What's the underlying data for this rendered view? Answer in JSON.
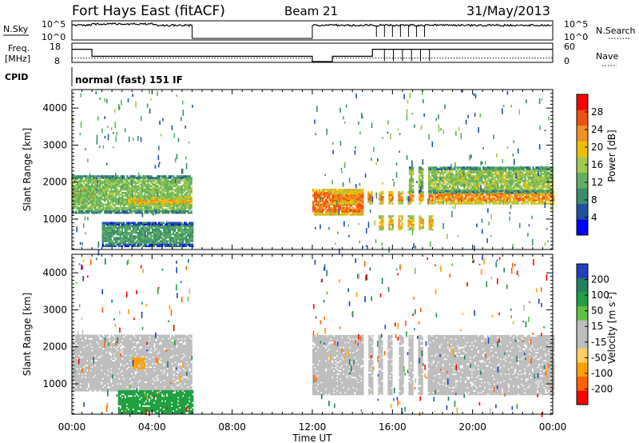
{
  "header": {
    "station": "Fort Hays East (fitACF)",
    "beam": "Beam 21",
    "date": "31/May/2013"
  },
  "nsky_panel": {
    "left_label": "N.Sky",
    "left_ticks": [
      "10^5",
      "10^0"
    ],
    "right_ticks": [
      "10^5",
      "10^0"
    ],
    "right_label": "N.Search"
  },
  "freq_panel": {
    "left_label_1": "Freq.",
    "left_label_2": "[MHz]",
    "left_ticks": [
      "18",
      "8"
    ],
    "right_ticks": [
      "60",
      "0"
    ],
    "right_label": "Nave"
  },
  "cpid_panel": {
    "label": "CPID",
    "mode": "normal (fast) 151 IF"
  },
  "colors": {
    "power_scale": [
      "#0000ff",
      "#2050a0",
      "#3c8c6e",
      "#60b060",
      "#a0c850",
      "#f0c000",
      "#f09020",
      "#f05010",
      "#ff0000"
    ],
    "velocity_scale": [
      "#ff0000",
      "#ff6000",
      "#ffa000",
      "#ffd060",
      "#bebebe",
      "#bebebe",
      "#60c040",
      "#20a040",
      "#208060",
      "#2040c0"
    ],
    "ground_scatter": "#bebebe"
  },
  "chart_data": [
    {
      "type": "line",
      "title": "N.Sky / N.Search",
      "x": [
        "00:00",
        "06:00",
        "12:00",
        "15:00",
        "18:00",
        "24:00"
      ],
      "series": [
        {
          "name": "N.Sky",
          "values": [
            4.5,
            4.5,
            0,
            4.5,
            4.5,
            4.5
          ]
        },
        {
          "name": "N.Search",
          "values": [
            4.5,
            4.5,
            0,
            4.5,
            4.5,
            4.5
          ]
        }
      ],
      "ylim": [
        0,
        5
      ]
    },
    {
      "type": "line",
      "title": "Freq. / Nave",
      "x": [
        "00:00",
        "01:00",
        "06:00",
        "12:00",
        "13:00",
        "15:00",
        "18:00",
        "24:00"
      ],
      "series": [
        {
          "name": "Freq.",
          "values": [
            15,
            11,
            11,
            8,
            11,
            15,
            15,
            15
          ]
        },
        {
          "name": "Nave",
          "values": [
            12,
            12,
            12,
            0,
            12,
            12,
            12,
            12
          ]
        }
      ],
      "ylim_freq": [
        8,
        18
      ],
      "ylim_nave": [
        0,
        60
      ]
    },
    {
      "type": "heatmap",
      "title": "Power",
      "xlabel": "Time UT",
      "ylabel": "Slant Range [km]",
      "x_ticks": [
        "00:00",
        "04:00",
        "08:00",
        "12:00",
        "16:00",
        "20:00",
        "00:00"
      ],
      "y_ticks": [
        "1000",
        "2000",
        "3000",
        "4000"
      ],
      "xlim_hours": [
        0,
        24
      ],
      "ylim_km": [
        180,
        4500
      ],
      "colorbar_label": "Power [dB]",
      "colorbar_ticks": [
        "4",
        "8",
        "12",
        "16",
        "20",
        "24",
        "28"
      ],
      "data_gaps_hours": [
        [
          6,
          12
        ]
      ],
      "bands": [
        {
          "t0": 0,
          "t1": 1.2,
          "r0": 1500,
          "r1": 1900,
          "level": 26
        },
        {
          "t0": 0,
          "t1": 6,
          "r0": 1150,
          "r1": 2150,
          "level": 14
        },
        {
          "t0": 2.8,
          "t1": 6,
          "r0": 1350,
          "r1": 1600,
          "level": 22
        },
        {
          "t0": 1.5,
          "t1": 6,
          "r0": 250,
          "r1": 900,
          "level": 10
        },
        {
          "t0": 12,
          "t1": 14.5,
          "r0": 1100,
          "r1": 1800,
          "level": 26
        },
        {
          "t0": 13,
          "t1": 18,
          "r0": 1400,
          "r1": 1750,
          "level": 25
        },
        {
          "t0": 15,
          "t1": 18,
          "r0": 700,
          "r1": 1100,
          "level": 22
        },
        {
          "t0": 18,
          "t1": 24,
          "r0": 1400,
          "r1": 1800,
          "level": 24
        },
        {
          "t0": 16.5,
          "t1": 24,
          "r0": 1700,
          "r1": 2400,
          "level": 15
        }
      ]
    },
    {
      "type": "heatmap",
      "title": "Velocity",
      "xlabel": "Time UT",
      "ylabel": "Slant Range [km]",
      "x_ticks": [
        "00:00",
        "04:00",
        "08:00",
        "12:00",
        "16:00",
        "20:00",
        "00:00"
      ],
      "y_ticks": [
        "1000",
        "2000",
        "3000",
        "4000"
      ],
      "xlim_hours": [
        0,
        24
      ],
      "ylim_km": [
        180,
        4500
      ],
      "colorbar_label_main": "Velocity",
      "colorbar_label_unit": "[m s",
      "colorbar_label_exp": "-1",
      "colorbar_label_close": "]",
      "colorbar_ticks": [
        "200",
        "100",
        "50",
        "15",
        "-15",
        "-50",
        "-100",
        "-200"
      ],
      "data_gaps_hours": [
        [
          6,
          12
        ]
      ],
      "bands": [
        {
          "t0": 0,
          "t1": 6,
          "r0": 800,
          "r1": 2300,
          "level": 0
        },
        {
          "t0": 2.3,
          "t1": 6,
          "r0": 200,
          "r1": 800,
          "level": 60
        },
        {
          "t0": 3.0,
          "t1": 3.6,
          "r0": 1400,
          "r1": 1700,
          "level": -60
        },
        {
          "t0": 12,
          "t1": 24,
          "r0": 700,
          "r1": 2300,
          "level": 0
        }
      ]
    }
  ]
}
